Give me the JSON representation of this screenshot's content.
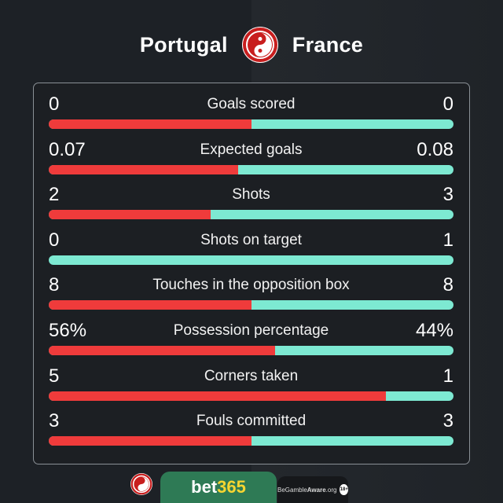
{
  "header": {
    "home": "Portugal",
    "away": "France",
    "logo_icon": "brand-logo-icon"
  },
  "colors": {
    "home": "#ef3b3b",
    "away": "#7de9d2"
  },
  "stats": [
    {
      "label": "Goals scored",
      "home": "0",
      "away": "0",
      "home_share": 0.5
    },
    {
      "label": "Expected goals",
      "home": "0.07",
      "away": "0.08",
      "home_share": 0.467
    },
    {
      "label": "Shots",
      "home": "2",
      "away": "3",
      "home_share": 0.4
    },
    {
      "label": "Shots on target",
      "home": "0",
      "away": "1",
      "home_share": 0
    },
    {
      "label": "Touches in the opposition box",
      "home": "8",
      "away": "8",
      "home_share": 0.5
    },
    {
      "label": "Possession percentage",
      "home": "56%",
      "away": "44%",
      "home_share": 0.56
    },
    {
      "label": "Corners taken",
      "home": "5",
      "away": "1",
      "home_share": 0.833
    },
    {
      "label": "Fouls committed",
      "home": "3",
      "away": "3",
      "home_share": 0.5
    }
  ],
  "footer": {
    "sponsor_a": "bet",
    "sponsor_b": "365",
    "gamble_a": "BeGamble",
    "gamble_b": "Aware",
    "gamble_c": ".org",
    "age": "18+"
  }
}
